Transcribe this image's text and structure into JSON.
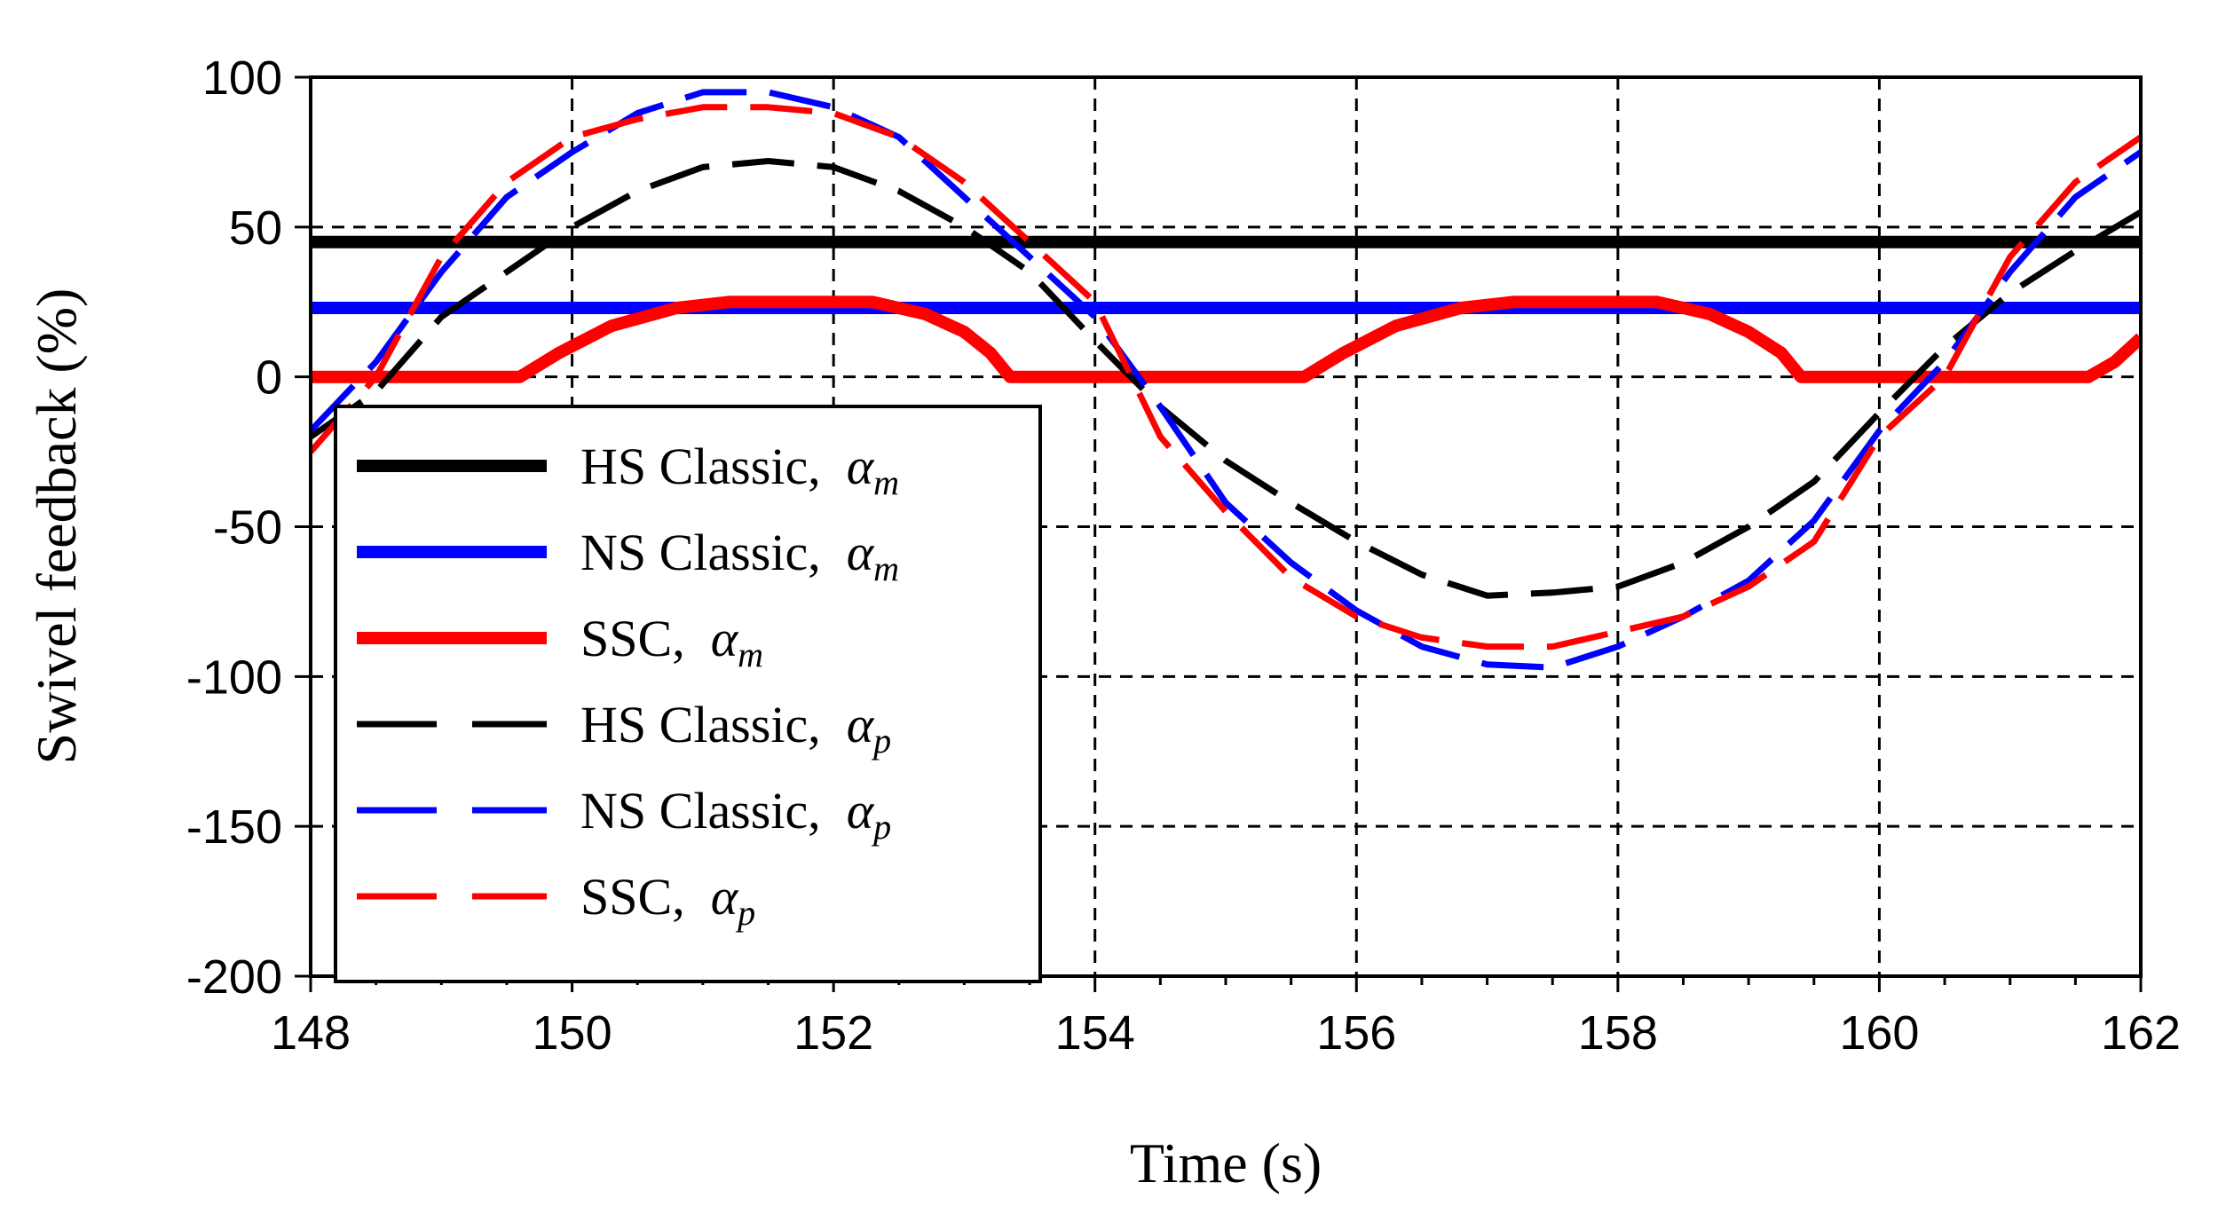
{
  "chart_data": {
    "type": "line",
    "title": "",
    "xlabel": "Time (s)",
    "ylabel": "Swivel feedback (%)",
    "xlim": [
      148,
      162
    ],
    "ylim": [
      -200,
      100
    ],
    "x_ticks": [
      148,
      150,
      152,
      154,
      156,
      158,
      160,
      162
    ],
    "y_ticks": [
      100,
      50,
      0,
      -50,
      -100,
      -150,
      -200
    ],
    "x_tick_labels": [
      "148",
      "150",
      "152",
      "154",
      "156",
      "158",
      "160",
      "162"
    ],
    "y_tick_labels": [
      "100",
      "50",
      "0",
      "-50",
      "-100",
      "-150",
      "-200"
    ],
    "grid": true,
    "legend_position": "lower-left",
    "series": [
      {
        "name": "HS Classic, α_m",
        "label_text": "HS Classic,",
        "symbol": "α",
        "subscript": "m",
        "color": "#000000",
        "dash": "solid",
        "x": [
          148,
          162
        ],
        "y": [
          45,
          45
        ]
      },
      {
        "name": "NS Classic, α_m",
        "label_text": "NS Classic,",
        "symbol": "α",
        "subscript": "m",
        "color": "#0000ff",
        "dash": "solid",
        "x": [
          148,
          162
        ],
        "y": [
          23,
          23
        ]
      },
      {
        "name": "SSC, α_m",
        "label_text": "SSC,",
        "symbol": "α",
        "subscript": "m",
        "color": "#ff0000",
        "dash": "solid",
        "x": [
          148,
          149.6,
          149.9,
          150.3,
          150.8,
          151.2,
          152.3,
          152.7,
          153.0,
          153.2,
          153.35,
          155.6,
          155.9,
          156.3,
          156.8,
          157.2,
          158.3,
          158.7,
          159.0,
          159.25,
          159.4,
          161.6,
          161.8,
          162
        ],
        "y": [
          0,
          0,
          8,
          17,
          23,
          25,
          25,
          21,
          15,
          8,
          0,
          0,
          8,
          17,
          23,
          25,
          25,
          21,
          15,
          8,
          0,
          0,
          5,
          13
        ]
      },
      {
        "name": "HS Classic, α_p",
        "label_text": "HS Classic,",
        "symbol": "α",
        "subscript": "p",
        "color": "#000000",
        "dash": "dashed",
        "x": [
          148,
          148.5,
          149,
          149.5,
          150,
          150.5,
          151,
          151.5,
          152,
          152.5,
          153,
          153.5,
          154,
          154.5,
          155,
          155.5,
          156,
          156.5,
          157,
          157.5,
          158,
          158.5,
          159,
          159.5,
          160,
          160.5,
          161,
          161.5,
          162
        ],
        "y": [
          -20,
          -5,
          20,
          35,
          50,
          62,
          70,
          72,
          70,
          62,
          50,
          35,
          12,
          -10,
          -28,
          -42,
          -55,
          -66,
          -73,
          -72,
          -70,
          -62,
          -50,
          -35,
          -12,
          10,
          28,
          42,
          55
        ]
      },
      {
        "name": "NS Classic, α_p",
        "label_text": "NS Classic,",
        "symbol": "α",
        "subscript": "p",
        "color": "#0000ff",
        "dash": "dashed",
        "x": [
          148,
          148.5,
          149,
          149.5,
          150,
          150.5,
          151,
          151.5,
          152,
          152.5,
          153,
          153.5,
          154,
          154.5,
          155,
          155.5,
          156,
          156.5,
          157,
          157.5,
          158,
          158.5,
          159,
          159.5,
          160,
          160.5,
          161,
          161.5,
          162
        ],
        "y": [
          -18,
          5,
          35,
          60,
          75,
          88,
          95,
          95,
          90,
          80,
          60,
          40,
          20,
          -10,
          -42,
          -62,
          -78,
          -90,
          -96,
          -97,
          -90,
          -80,
          -68,
          -48,
          -18,
          5,
          35,
          60,
          75
        ]
      },
      {
        "name": "SSC, α_p",
        "label_text": "SSC,",
        "symbol": "α",
        "subscript": "p",
        "color": "#ff0000",
        "dash": "dashed",
        "x": [
          148,
          148.5,
          149,
          149.5,
          150,
          150.5,
          151,
          151.5,
          152,
          152.5,
          153,
          153.5,
          154,
          154.5,
          155,
          155.5,
          156,
          156.5,
          157,
          157.5,
          158,
          158.5,
          159,
          159.5,
          160,
          160.5,
          161,
          161.5,
          162
        ],
        "y": [
          -25,
          0,
          40,
          65,
          80,
          86,
          90,
          90,
          88,
          80,
          65,
          45,
          25,
          -20,
          -45,
          -67,
          -80,
          -87,
          -90,
          -90,
          -85,
          -80,
          -70,
          -55,
          -20,
          0,
          40,
          65,
          80
        ]
      }
    ]
  }
}
